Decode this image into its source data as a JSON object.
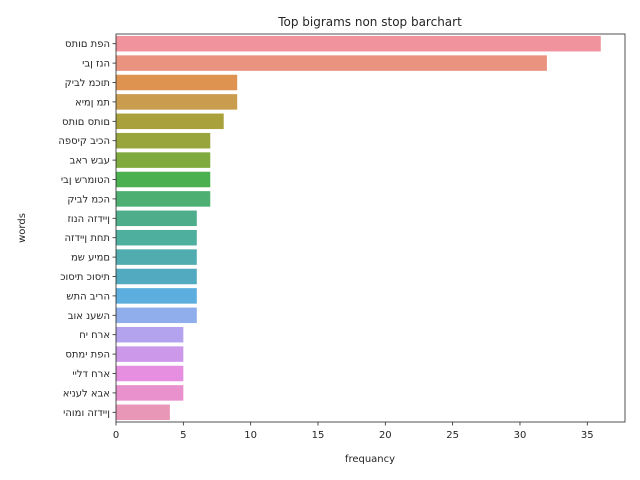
{
  "chart_data": {
    "type": "bar",
    "orientation": "horizontal",
    "title": "Top bigrams non stop barchart",
    "xlabel": "frequancy",
    "ylabel": "words",
    "xlim": [
      0,
      37.8
    ],
    "xticks": [
      0,
      5,
      10,
      15,
      20,
      25,
      30,
      35
    ],
    "grid": false,
    "categories": [
      "הפת םותס",
      "הנז ןבי",
      "תוכמ לביק",
      "תמ ןמיא",
      "םותס םותס",
      "הכיב קיספה",
      "עבש ראב",
      "הטומרש ןבי",
      "הכמ לביק",
      "ןיידזה הנוז",
      "תחת ןיידזה",
      "םמיע שמ",
      "תיסוכ תיסוכ",
      "הריב התש",
      "השענ אוב",
      "ארח יח",
      "הפת ימתס",
      "ארח דליי",
      "אבא לעניא",
      "ןיידזה ומוהי"
    ],
    "values": [
      36,
      32,
      9,
      9,
      8,
      7,
      7,
      7,
      7,
      6,
      6,
      6,
      6,
      6,
      6,
      5,
      5,
      5,
      5,
      4
    ],
    "colors": [
      "#f0939c",
      "#ea9480",
      "#de9450",
      "#c99d4d",
      "#a9a23c",
      "#98a43c",
      "#7eaa3e",
      "#4bb04f",
      "#4eaf72",
      "#4eae8c",
      "#4faf9f",
      "#50acaf",
      "#52aac0",
      "#5baedd",
      "#91aeec",
      "#b3a3ee",
      "#cc99ea",
      "#e68fe0",
      "#e891cd",
      "#e997b7"
    ]
  }
}
